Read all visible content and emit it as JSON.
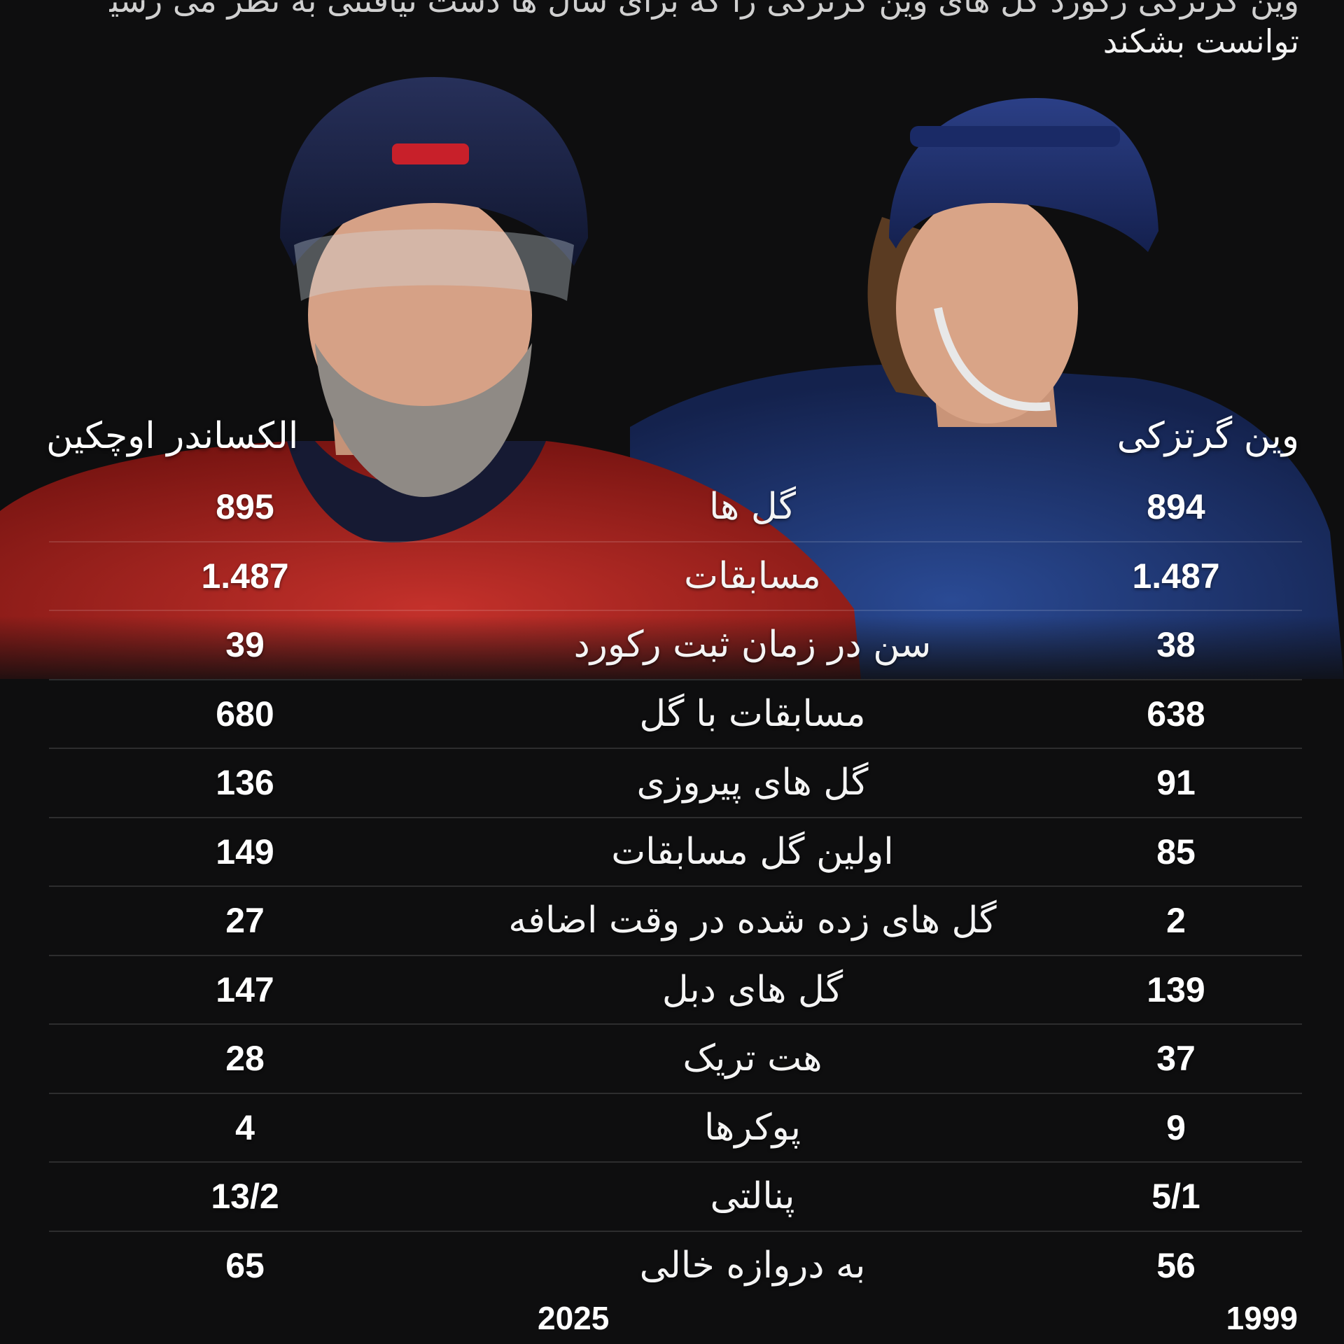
{
  "header": {
    "line1": "وین گرتزکی رکورد گل های وین گرتزکی را که برای سال ها دست نیافتنی به نظر می رسید",
    "line2": "توانست بشکند"
  },
  "players": {
    "left": {
      "name": "الکساندر اوچکین",
      "year": "2025",
      "jersey_color": "#b5231f"
    },
    "right": {
      "name": "وین گرتزکی",
      "year": "1999",
      "jersey_color": "#1c2f66"
    }
  },
  "stats": [
    {
      "label": "گل ها",
      "left": "895",
      "right": "894"
    },
    {
      "label": "مسابقات",
      "left": "1.487",
      "right": "1.487"
    },
    {
      "label": "سن در زمان ثبت رکورد",
      "left": "39",
      "right": "38"
    },
    {
      "label": "مسابقات با گل",
      "left": "680",
      "right": "638"
    },
    {
      "label": "گل های پیروزی",
      "left": "136",
      "right": "91"
    },
    {
      "label": "اولین گل مسابقات",
      "left": "149",
      "right": "85"
    },
    {
      "label": "گل های زده شده در وقت اضافه",
      "left": "27",
      "right": "2"
    },
    {
      "label": "گل های دبل",
      "left": "147",
      "right": "139"
    },
    {
      "label": "هت تریک",
      "left": "28",
      "right": "37"
    },
    {
      "label": "پوکرها",
      "left": "4",
      "right": "9"
    },
    {
      "label": "پنالتی",
      "left": "13/2",
      "right": "5/1"
    },
    {
      "label": "به دروازه خالی",
      "left": "65",
      "right": "56"
    }
  ]
}
